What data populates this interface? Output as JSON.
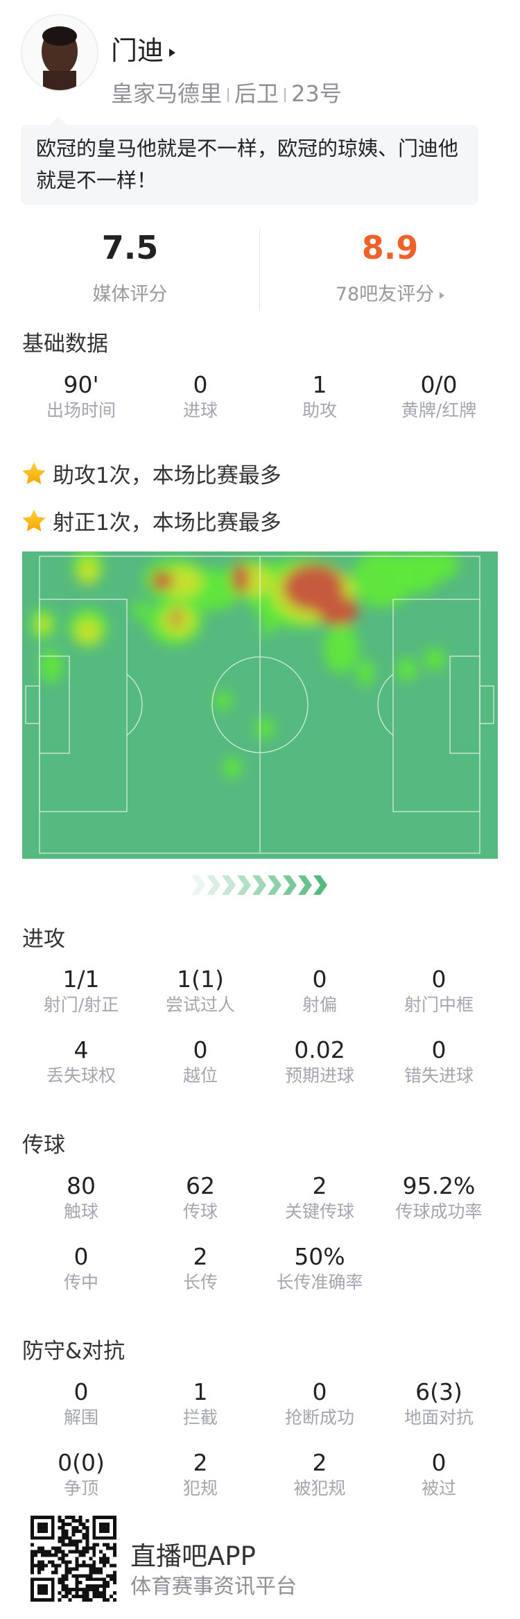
{
  "player": {
    "name": "门迪",
    "team": "皇家马德里",
    "position": "后卫",
    "number": "23号",
    "quote": "欧冠的皇马他就是不一样，欧冠的琼姨、门迪他就是不一样！"
  },
  "ratings": {
    "media": {
      "value": "7.5",
      "label": "媒体评分"
    },
    "fans": {
      "value": "8.9",
      "label": "78吧友评分",
      "color": "#f0612a"
    }
  },
  "basic": {
    "title": "基础数据",
    "stats": [
      {
        "value": "90'",
        "label": "出场时间"
      },
      {
        "value": "0",
        "label": "进球"
      },
      {
        "value": "1",
        "label": "助攻"
      },
      {
        "value": "0/0",
        "label": "黄牌/红牌"
      }
    ]
  },
  "highlights": [
    "助攻1次，本场比赛最多",
    "射正1次，本场比赛最多"
  ],
  "heatmap": {
    "pitch_color": "#56b97f",
    "attack_direction": "right"
  },
  "attack": {
    "title": "进攻",
    "stats": [
      {
        "value": "1/1",
        "label": "射门/射正"
      },
      {
        "value": "1(1)",
        "label": "尝试过人"
      },
      {
        "value": "0",
        "label": "射偏"
      },
      {
        "value": "0",
        "label": "射门中框"
      },
      {
        "value": "4",
        "label": "丢失球权"
      },
      {
        "value": "0",
        "label": "越位"
      },
      {
        "value": "0.02",
        "label": "预期进球"
      },
      {
        "value": "0",
        "label": "错失进球"
      }
    ]
  },
  "passing": {
    "title": "传球",
    "stats": [
      {
        "value": "80",
        "label": "触球"
      },
      {
        "value": "62",
        "label": "传球"
      },
      {
        "value": "2",
        "label": "关键传球"
      },
      {
        "value": "95.2%",
        "label": "传球成功率"
      },
      {
        "value": "0",
        "label": "传中"
      },
      {
        "value": "2",
        "label": "长传"
      },
      {
        "value": "50%",
        "label": "长传准确率"
      }
    ]
  },
  "defense": {
    "title": "防守&对抗",
    "stats": [
      {
        "value": "0",
        "label": "解围"
      },
      {
        "value": "1",
        "label": "拦截"
      },
      {
        "value": "0",
        "label": "抢断成功"
      },
      {
        "value": "6(3)",
        "label": "地面对抗"
      },
      {
        "value": "0(0)",
        "label": "争顶"
      },
      {
        "value": "2",
        "label": "犯规"
      },
      {
        "value": "2",
        "label": "被犯规"
      },
      {
        "value": "0",
        "label": "被过"
      }
    ]
  },
  "footer": {
    "brand": "直播吧APP",
    "slogan": "体育赛事资讯平台"
  }
}
